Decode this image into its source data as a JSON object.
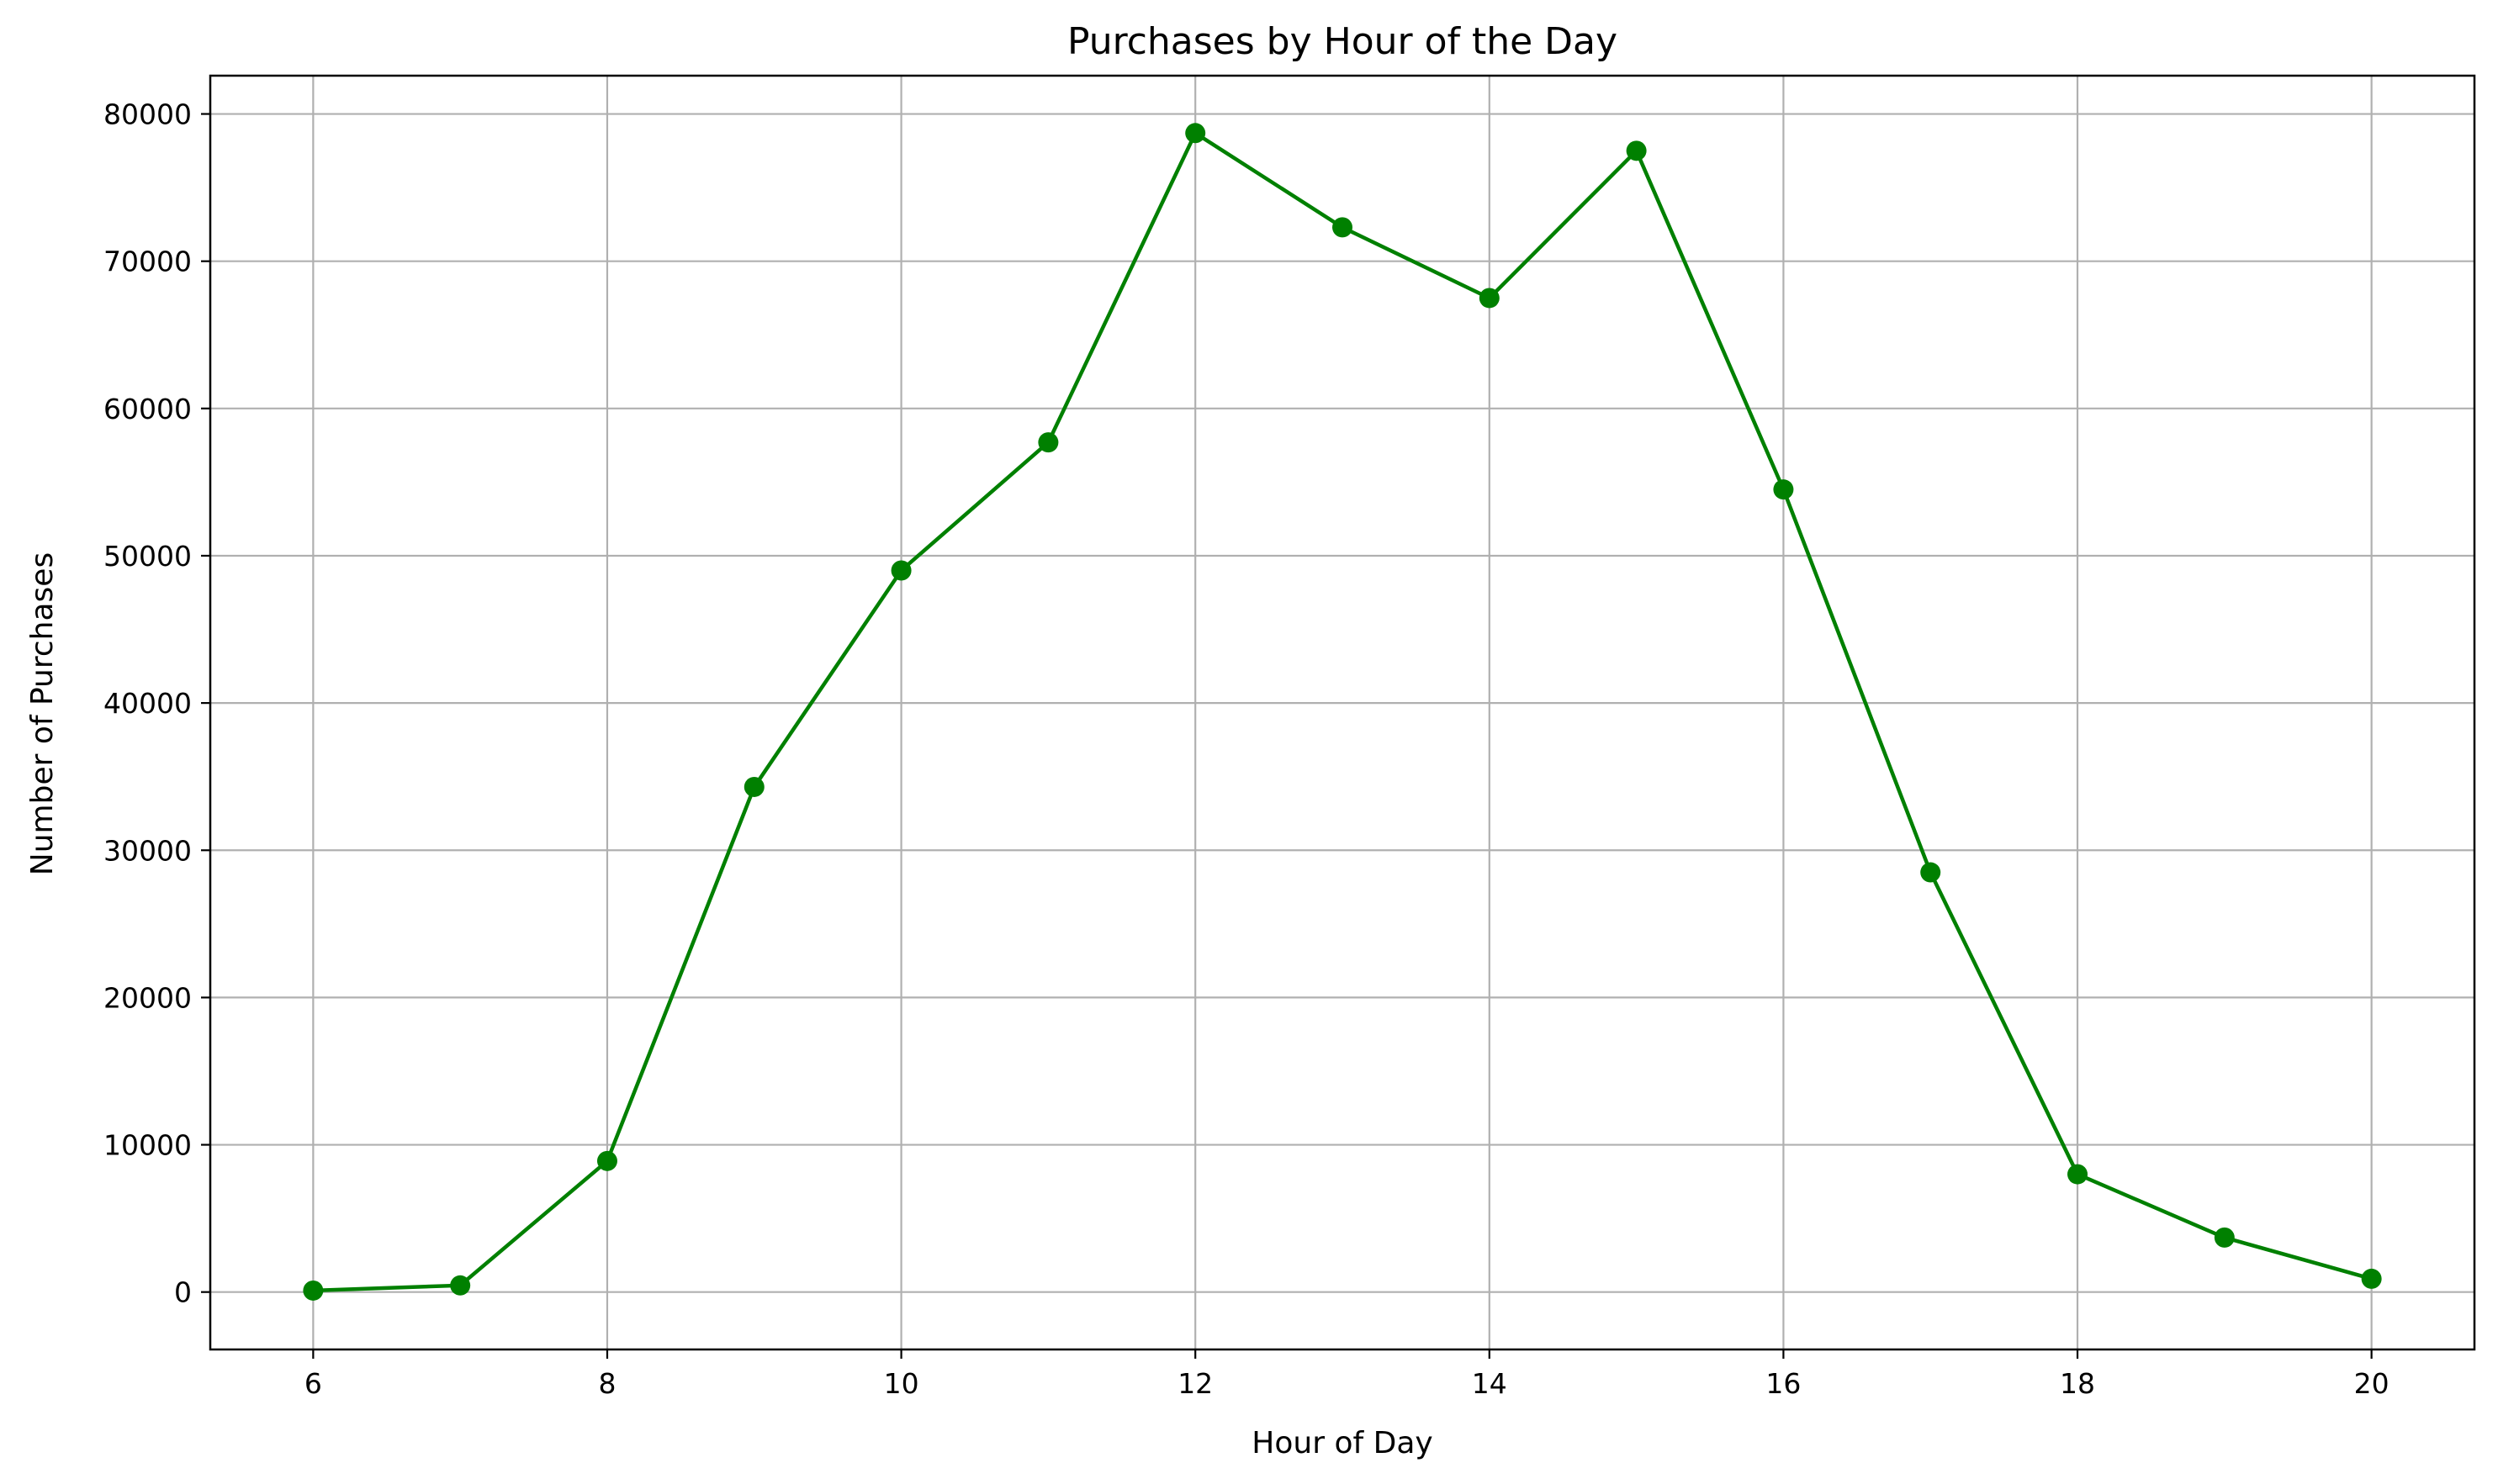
{
  "chart_data": {
    "type": "line",
    "title": "Purchases by Hour of the Day",
    "xlabel": "Hour of Day",
    "ylabel": "Number of Purchases",
    "x": [
      6,
      7,
      8,
      9,
      10,
      11,
      12,
      13,
      14,
      15,
      16,
      17,
      18,
      19,
      20
    ],
    "series": [
      {
        "values": [
          100,
          450,
          8900,
          34300,
          49000,
          57700,
          78700,
          72300,
          67500,
          77500,
          54500,
          28500,
          8000,
          3700,
          900
        ],
        "color": "#008000",
        "marker": "circle"
      }
    ],
    "xlim": [
      5.3,
      20.7
    ],
    "ylim": [
      -3900,
      82600
    ],
    "xticks": [
      6,
      8,
      10,
      12,
      14,
      16,
      18,
      20
    ],
    "yticks": [
      0,
      10000,
      20000,
      30000,
      40000,
      50000,
      60000,
      70000,
      80000
    ],
    "grid": true,
    "grid_color": "#b0b0b0",
    "legend": false
  }
}
